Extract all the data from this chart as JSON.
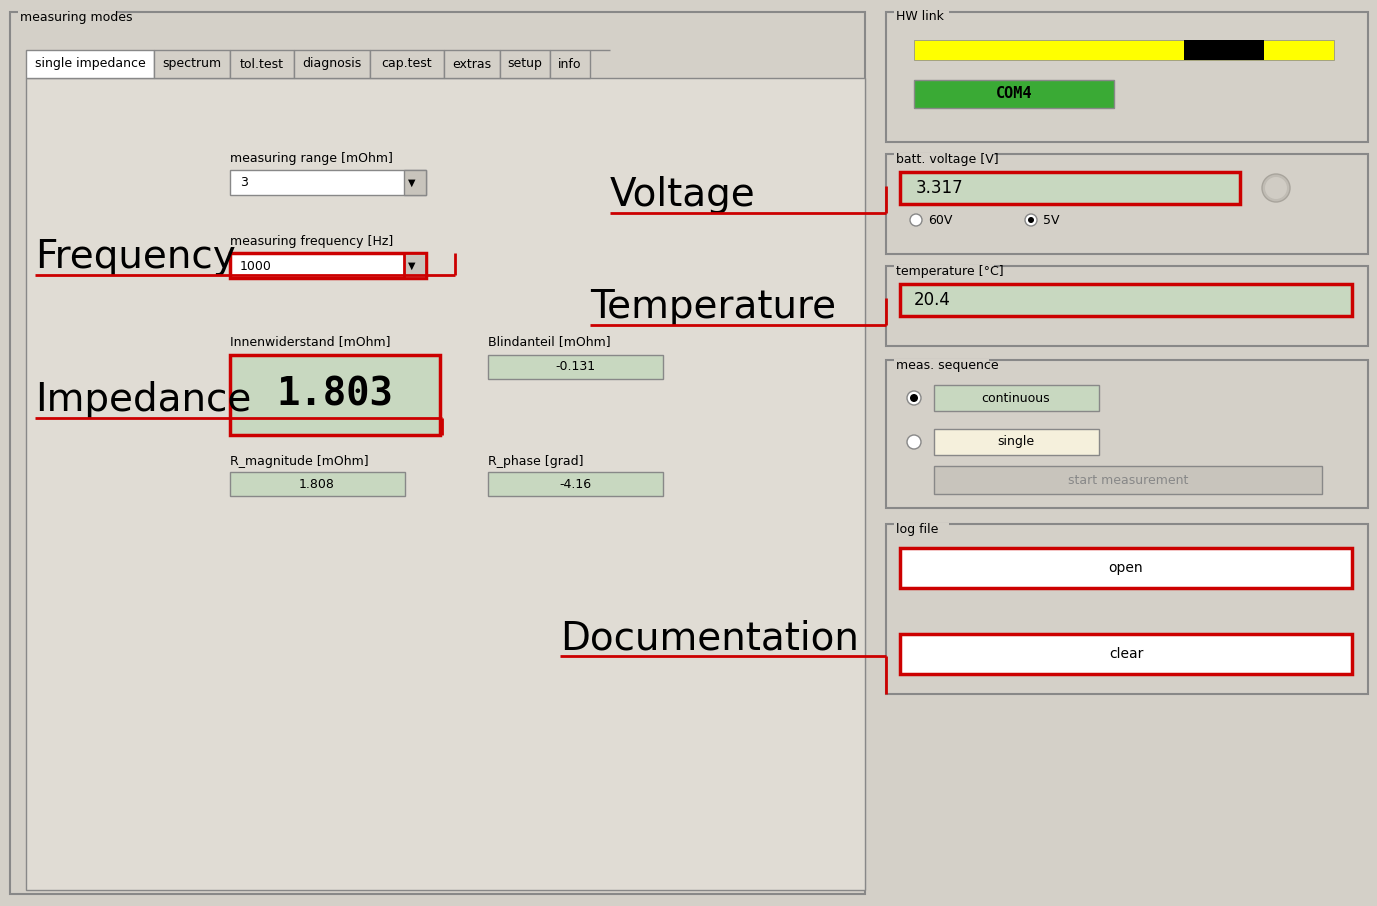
{
  "bg_color": "#d4d0c8",
  "white": "#ffffff",
  "green_field": "#c8d8c0",
  "green_bright": "#3aaa35",
  "yellow": "#ffff00",
  "black": "#000000",
  "red": "#cc0000",
  "gray_border": "#888888",
  "gray_light": "#e0dcd4",
  "gray_mid": "#a8a49c",
  "gray_btn": "#c8c4bc",
  "outer_box_label": "measuring modes",
  "tabs": [
    "single impedance",
    "spectrum",
    "tol.test",
    "diagnosis",
    "cap.test",
    "extras",
    "setup",
    "info"
  ],
  "label_measuring_range": "measuring range [mOhm]",
  "value_range": "3",
  "label_freq": "measuring frequency [Hz]",
  "value_freq": "1000",
  "label_inner": "Innenwiderstand [mOhm]",
  "value_inner": "1.803",
  "label_blind": "Blindanteil [mOhm]",
  "value_blind": "-0.131",
  "label_rmag": "R_magnitude [mOhm]",
  "value_rmag": "1.808",
  "label_rphase": "R_phase [grad]",
  "value_rphase": "-4.16",
  "hw_link_label": "HW link",
  "com_value": "COM4",
  "batt_voltage_label": "batt. voltage [V]",
  "batt_voltage_value": "3.317",
  "radio_60v": "60V",
  "radio_5v": "5V",
  "temp_label": "temperature [°C]",
  "temp_value": "20.4",
  "meas_seq_label": "meas. sequence",
  "meas_continuous": "continuous",
  "meas_single": "single",
  "btn_start": "start measurement",
  "log_file_label": "log file",
  "btn_open": "open",
  "btn_clear": "clear",
  "anno_frequency": "Frequency",
  "anno_voltage": "Voltage",
  "anno_temperature": "Temperature",
  "anno_impedance": "Impedance",
  "anno_documentation": "Documentation"
}
